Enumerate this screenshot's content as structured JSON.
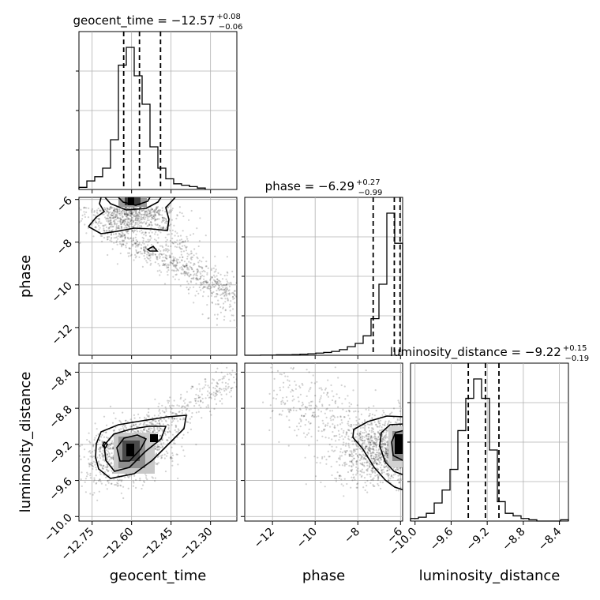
{
  "chart_data": {
    "type": "corner",
    "parameters": [
      "geocent_time",
      "phase",
      "luminosity_distance"
    ],
    "titles": [
      {
        "prefix": "geocent_time = −12.57",
        "plus": "+0.08",
        "minus": "−0.06"
      },
      {
        "prefix": "phase = −6.29",
        "plus": "+0.27",
        "minus": "−0.99"
      },
      {
        "prefix": "luminosity_distance = −9.22",
        "plus": "+0.15",
        "minus": "−0.19"
      }
    ],
    "ranges": [
      [
        -12.8,
        -12.2
      ],
      [
        -13.3,
        -5.9
      ],
      [
        -10.05,
        -8.3
      ]
    ],
    "ticks": [
      {
        "values": [
          -12.75,
          -12.6,
          -12.45,
          -12.3
        ],
        "labels": [
          "−12.75",
          "−12.60",
          "−12.45",
          "−12.30"
        ]
      },
      {
        "values": [
          -12,
          -10,
          -8,
          -6
        ],
        "labels": [
          "−12",
          "−10",
          "−8",
          "−6"
        ]
      },
      {
        "values": [
          -10.0,
          -9.6,
          -9.2,
          -8.8,
          -8.4
        ],
        "labels": [
          "−10.0",
          "−9.6",
          "−9.2",
          "−8.8",
          "−8.4"
        ]
      }
    ],
    "quantiles": [
      [
        -12.63,
        -12.57,
        -12.49
      ],
      [
        -7.28,
        -6.29,
        -6.02
      ],
      [
        -9.41,
        -9.22,
        -9.07
      ]
    ],
    "histograms": [
      {
        "edges_start": -12.8,
        "bin_width": 0.03,
        "counts": [
          3,
          12,
          18,
          30,
          70,
          175,
          200,
          160,
          120,
          60,
          30,
          15,
          8,
          6,
          4,
          2
        ]
      },
      {
        "edges_start": -13.3,
        "bin_width": 0.37,
        "counts": [
          0,
          0,
          1,
          1,
          2,
          2,
          3,
          5,
          7,
          10,
          13,
          18,
          26,
          40,
          55,
          90,
          170,
          330,
          660,
          520
        ]
      },
      {
        "edges_start": -10.05,
        "bin_width": 0.0875,
        "counts": [
          2,
          3,
          6,
          14,
          24,
          40,
          70,
          95,
          110,
          95,
          55,
          15,
          6,
          4,
          2,
          1,
          0,
          0,
          0,
          1
        ]
      }
    ],
    "grid": true,
    "legend": "none"
  }
}
